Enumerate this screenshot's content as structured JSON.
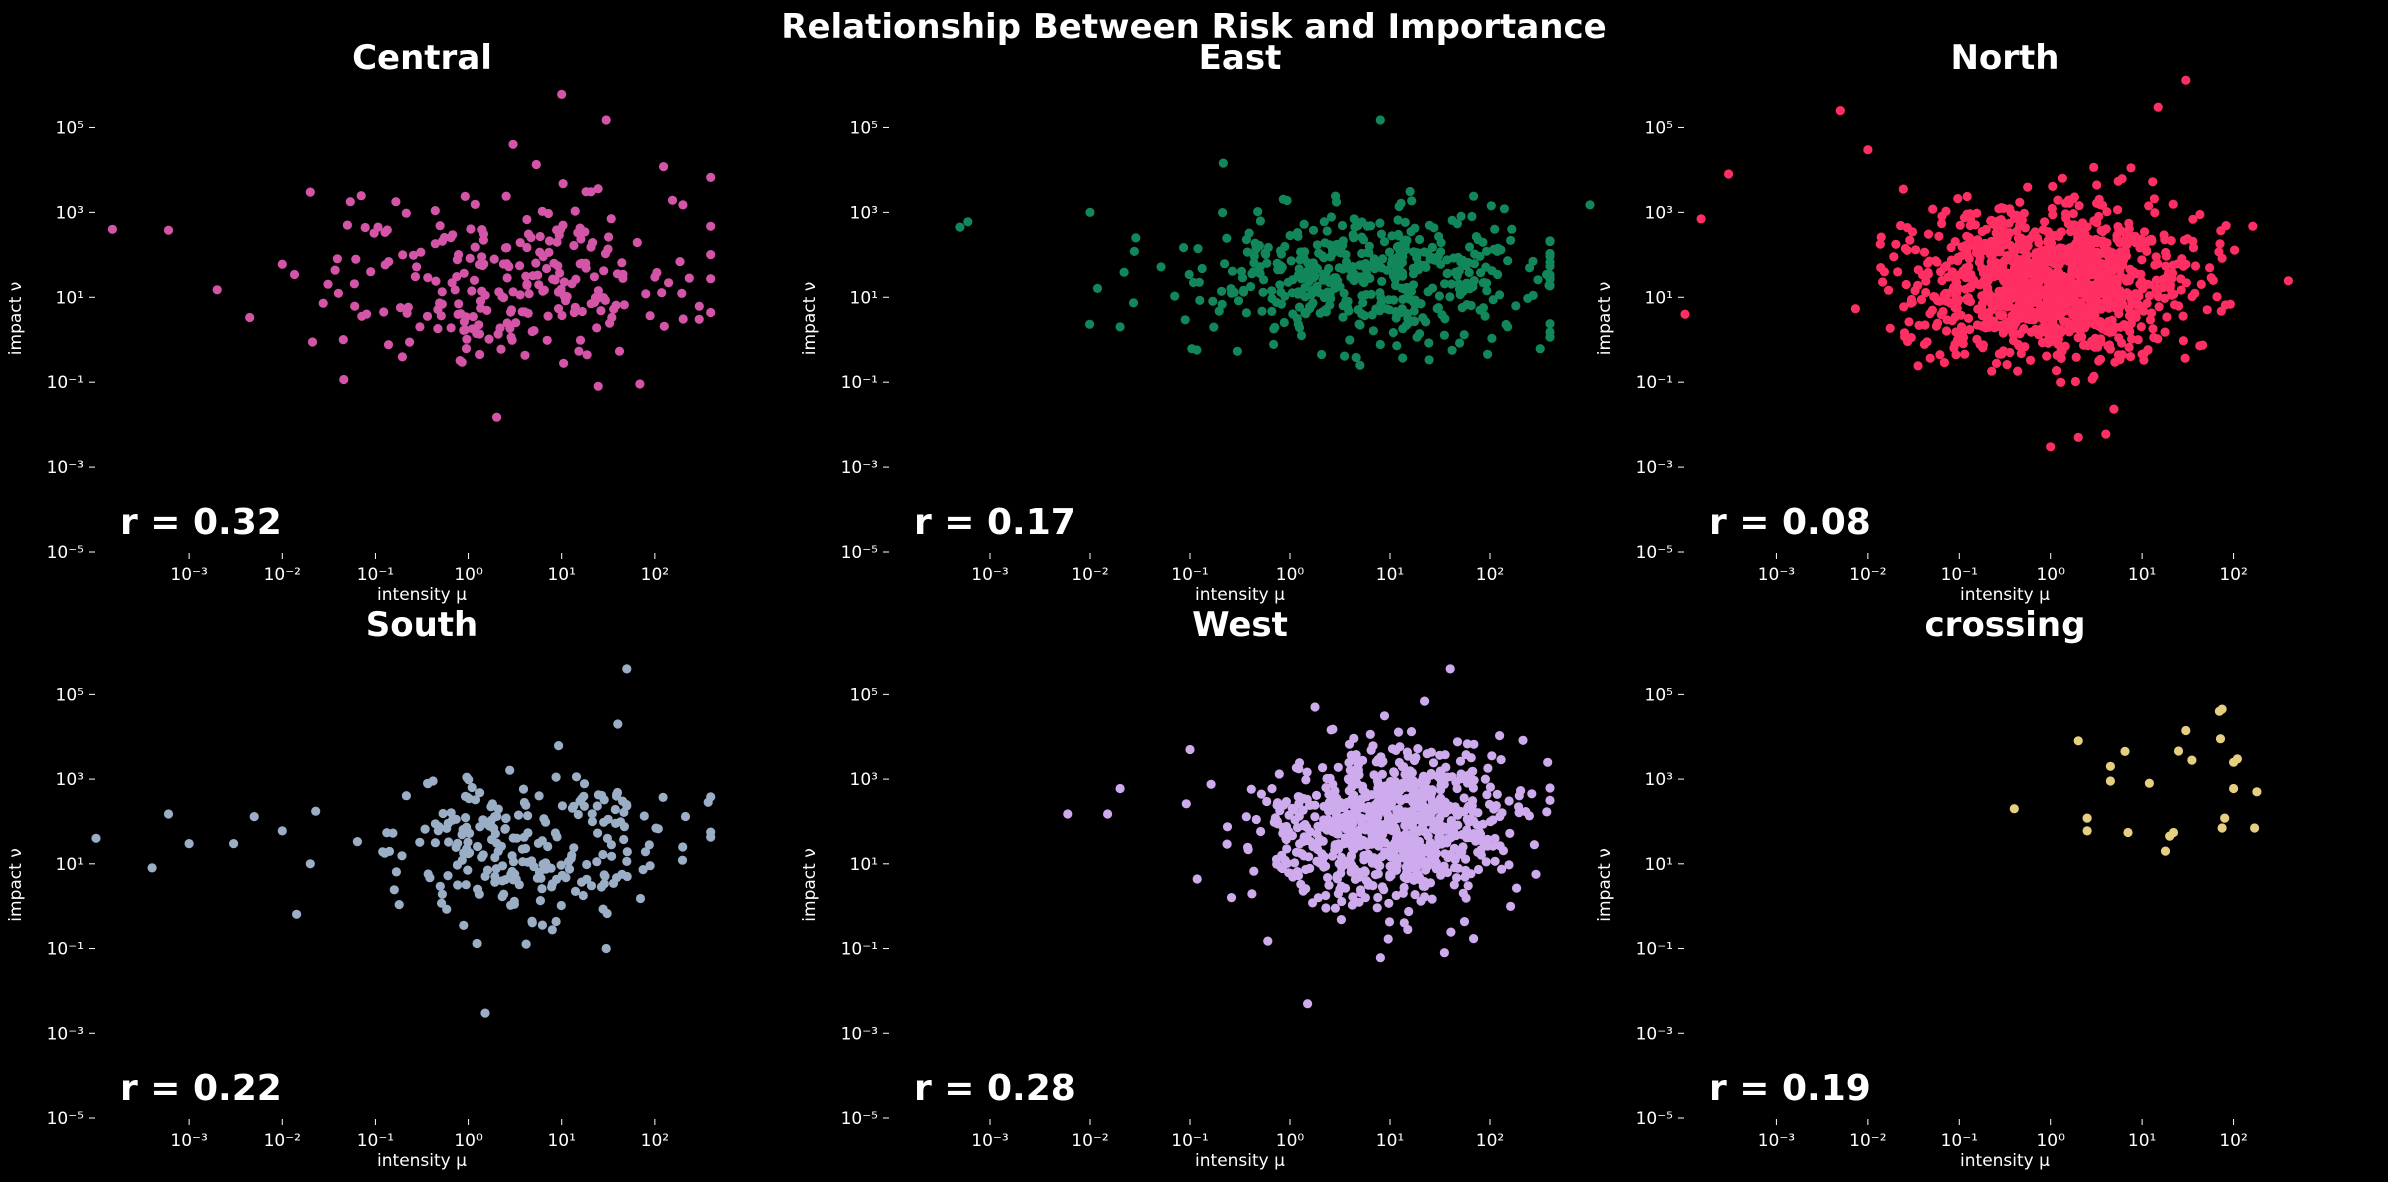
{
  "chart_data": {
    "type": "scatter",
    "title": "Relationship Between Risk and Importance",
    "xlabel": "intensity μ",
    "ylabel": "impact ν",
    "xscale": "log",
    "yscale": "log",
    "xlim": [
      0.0001,
      1000
    ],
    "ylim": [
      1e-05,
      1000000
    ],
    "xtick_exponents": [
      -3,
      -2,
      -1,
      0,
      1,
      2
    ],
    "ytick_exponents": [
      -5,
      -3,
      -1,
      1,
      3,
      5
    ],
    "grid": false,
    "panels": [
      {
        "title": "Central",
        "r_label": "r = 0.32",
        "color": "#d455a8",
        "n_points": 260,
        "center_log": [
          0.4,
          1.4
        ],
        "spread_log": [
          1.0,
          1.0
        ],
        "points": [
          [
            0.00015,
            400
          ],
          [
            0.0006,
            380
          ],
          [
            0.002,
            15
          ],
          [
            0.01,
            60
          ],
          [
            0.02,
            3000
          ],
          [
            0.05,
            500
          ],
          [
            2.0,
            0.015
          ],
          [
            10,
            600000
          ],
          [
            30,
            150000
          ],
          [
            200,
            1500
          ],
          [
            100,
            30
          ],
          [
            80,
            12
          ],
          [
            0.3,
            2
          ],
          [
            3,
            40000
          ]
        ]
      },
      {
        "title": "East",
        "r_label": "r = 0.17",
        "color": "#12875a",
        "n_points": 470,
        "center_log": [
          0.8,
          1.5
        ],
        "spread_log": [
          0.9,
          0.8
        ],
        "points": [
          [
            0.0005,
            450
          ],
          [
            0.0006,
            600
          ],
          [
            0.01,
            1000
          ],
          [
            0.02,
            2
          ],
          [
            5,
            0.25
          ],
          [
            8,
            150000
          ],
          [
            150,
            2
          ],
          [
            1000,
            1500
          ]
        ]
      },
      {
        "title": "North",
        "r_label": "r = 0.08",
        "color": "#ff2f63",
        "n_points": 1150,
        "center_log": [
          0.0,
          1.4
        ],
        "spread_log": [
          0.75,
          0.9
        ],
        "points": [
          [
            0.0001,
            4
          ],
          [
            0.00015,
            700
          ],
          [
            0.0003,
            8000
          ],
          [
            0.005,
            250000
          ],
          [
            30,
            1300000
          ],
          [
            60,
            25
          ],
          [
            1,
            0.003
          ],
          [
            2,
            0.005
          ],
          [
            4,
            0.006
          ],
          [
            15,
            300000
          ],
          [
            0.01,
            30000
          ]
        ]
      },
      {
        "title": "South",
        "r_label": "r = 0.22",
        "color": "#9aaec6",
        "n_points": 250,
        "center_log": [
          0.7,
          1.5
        ],
        "spread_log": [
          0.8,
          0.9
        ],
        "points": [
          [
            0.0001,
            40
          ],
          [
            0.0004,
            8
          ],
          [
            0.0006,
            150
          ],
          [
            0.001,
            30
          ],
          [
            0.003,
            30
          ],
          [
            0.005,
            130
          ],
          [
            0.01,
            60
          ],
          [
            0.02,
            10
          ],
          [
            1.5,
            0.003
          ],
          [
            30,
            0.1
          ],
          [
            50,
            400000
          ],
          [
            40,
            20000
          ]
        ]
      },
      {
        "title": "West",
        "r_label": "r = 0.28",
        "color": "#cdabed",
        "n_points": 830,
        "center_log": [
          1.0,
          1.9
        ],
        "spread_log": [
          0.6,
          0.9
        ],
        "points": [
          [
            0.006,
            150
          ],
          [
            0.015,
            150
          ],
          [
            0.02,
            600
          ],
          [
            0.6,
            0.15
          ],
          [
            1.5,
            0.005
          ],
          [
            35,
            0.08
          ],
          [
            40,
            400000
          ],
          [
            0.1,
            5000
          ]
        ]
      },
      {
        "title": "crossing",
        "r_label": "r = 0.19",
        "color": "#e6cf80",
        "n_points": 25,
        "points": [
          [
            0.4,
            200
          ],
          [
            2.0,
            8000
          ],
          [
            2.5,
            120
          ],
          [
            2.5,
            60
          ],
          [
            4.5,
            2000
          ],
          [
            4.5,
            900
          ],
          [
            6.5,
            4500
          ],
          [
            7,
            55
          ],
          [
            12,
            800
          ],
          [
            18,
            20
          ],
          [
            20,
            45
          ],
          [
            22,
            55
          ],
          [
            25,
            4600
          ],
          [
            30,
            14000
          ],
          [
            35,
            2800
          ],
          [
            70,
            40000
          ],
          [
            75,
            45000
          ],
          [
            72,
            9000
          ],
          [
            80,
            120
          ],
          [
            75,
            70
          ],
          [
            100,
            2500
          ],
          [
            110,
            3000
          ],
          [
            100,
            600
          ],
          [
            180,
            500
          ],
          [
            170,
            70
          ]
        ]
      }
    ]
  }
}
